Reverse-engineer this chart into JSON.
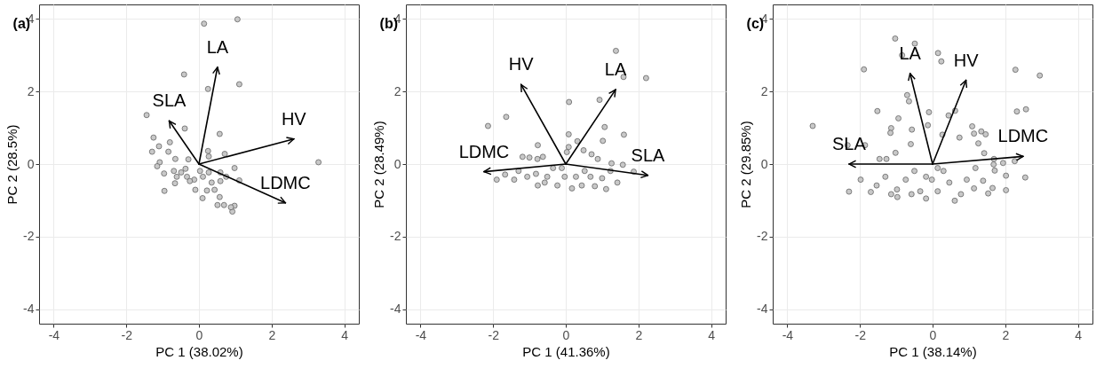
{
  "chart_data": [
    {
      "type": "scatter",
      "title": "(a)",
      "xlabel": "PC 1 (38.02%)",
      "ylabel": "PC 2 (28.5%)",
      "xlim": [
        -4.4,
        4.4
      ],
      "ylim": [
        -4.4,
        4.4
      ],
      "xticks": [
        -4,
        -2,
        0,
        2,
        4
      ],
      "yticks": [
        -4,
        -2,
        0,
        2,
        4
      ],
      "grid": true,
      "line_style": "solid",
      "series": [
        {
          "marker": "circle",
          "color": "#c8c8c8",
          "x": [
            0.14,
            1.06,
            -0.41,
            0.25,
            1.11,
            -1.44,
            -0.39,
            0.57,
            -1.25,
            -0.8,
            -1.1,
            0.25,
            0.71,
            -1.29,
            -0.84,
            -0.65,
            -1.08,
            3.29,
            -1.15,
            -0.96,
            0.98,
            1.11,
            -0.61,
            -0.37,
            -0.13,
            0.11,
            0.35,
            0.59,
            -0.66,
            -0.1,
            -0.95,
            0.22,
            0.43,
            0.1,
            0.57,
            0.51,
            0.69,
            0.98,
            0.92,
            0.88,
            0.27,
            -0.33,
            -0.49,
            0.03,
            -0.25,
            0.27,
            0.75,
            0.59,
            -0.69,
            -0.29
          ],
          "values": [
            3.87,
            3.99,
            2.47,
            2.07,
            2.2,
            1.35,
            0.98,
            0.83,
            0.73,
            0.6,
            0.49,
            0.36,
            0.28,
            0.34,
            0.34,
            0.14,
            0.05,
            0.05,
            -0.06,
            -0.26,
            -0.11,
            -0.45,
            -0.35,
            -0.13,
            -0.43,
            -0.35,
            -0.51,
            -0.47,
            -0.53,
            -0.71,
            -0.74,
            -0.73,
            -0.71,
            -0.94,
            -0.91,
            -1.13,
            -1.13,
            -1.15,
            -1.31,
            -1.19,
            0.21,
            -0.35,
            -0.23,
            -0.19,
            -0.47,
            -0.23,
            -0.35,
            -0.23,
            -0.19,
            0.13
          ]
        },
        {
          "type": "line",
          "name": "LA",
          "color": "#000000",
          "x": [
            0,
            0.51
          ],
          "values": [
            0,
            2.67
          ]
        },
        {
          "type": "line",
          "name": "SLA",
          "color": "#000000",
          "x": [
            0,
            -0.82
          ],
          "values": [
            0,
            1.19
          ]
        },
        {
          "type": "line",
          "name": "HV",
          "color": "#000000",
          "x": [
            0,
            2.61
          ],
          "values": [
            0,
            0.69
          ]
        },
        {
          "type": "line",
          "name": "LDMC",
          "color": "#000000",
          "x": [
            0,
            2.38
          ],
          "values": [
            0,
            -1.07
          ]
        }
      ]
    },
    {
      "type": "scatter",
      "title": "(b)",
      "xlabel": "PC 1 (41.36%)",
      "ylabel": "PC 2 (28.49%)",
      "xlim": [
        -4.4,
        4.4
      ],
      "ylim": [
        -4.4,
        4.4
      ],
      "xticks": [
        -4,
        -2,
        0,
        2,
        4
      ],
      "yticks": [
        -4,
        -2,
        0,
        2,
        4
      ],
      "grid": true,
      "line_style": "solid",
      "series": [
        {
          "marker": "circle",
          "color": "#c8c8c8",
          "x": [
            1.38,
            1.59,
            2.21,
            0.09,
            0.93,
            -1.64,
            -2.14,
            1.07,
            0.08,
            1.6,
            1.02,
            -0.77,
            0.32,
            0.08,
            0.49,
            0.03,
            0.71,
            -1.19,
            -1.0,
            -0.78,
            -0.63,
            0.88,
            1.26,
            1.57,
            1.87,
            -1.67,
            -1.9,
            -1.42,
            -1.3,
            -1.06,
            -0.82,
            -0.77,
            -0.51,
            -0.23,
            -0.03,
            0.17,
            0.28,
            0.44,
            0.68,
            0.8,
            1.11,
            1.0,
            1.42,
            1.23,
            -0.35,
            -0.58,
            0.52,
            -0.11
          ],
          "values": [
            3.12,
            2.4,
            2.37,
            1.71,
            1.77,
            1.3,
            1.05,
            1.02,
            0.82,
            0.81,
            0.64,
            0.52,
            0.63,
            0.47,
            0.38,
            0.33,
            0.27,
            0.2,
            0.18,
            0.14,
            0.2,
            0.14,
            0.02,
            -0.02,
            -0.21,
            -0.29,
            -0.43,
            -0.43,
            -0.19,
            -0.35,
            -0.27,
            -0.59,
            -0.35,
            -0.59,
            -0.35,
            -0.67,
            -0.35,
            -0.59,
            -0.35,
            -0.61,
            -0.69,
            -0.39,
            -0.51,
            -0.19,
            -0.11,
            -0.51,
            -0.19,
            -0.11
          ]
        },
        {
          "type": "line",
          "name": "HV",
          "color": "#000000",
          "x": [
            0,
            -1.23
          ],
          "values": [
            0,
            2.19
          ]
        },
        {
          "type": "line",
          "name": "LA",
          "color": "#000000",
          "x": [
            0,
            1.37
          ],
          "values": [
            0,
            2.05
          ]
        },
        {
          "type": "line",
          "name": "LDMC",
          "color": "#000000",
          "x": [
            0,
            -2.25
          ],
          "values": [
            0,
            -0.21
          ]
        },
        {
          "type": "line",
          "name": "SLA",
          "color": "#000000",
          "x": [
            0,
            2.26
          ],
          "values": [
            0,
            -0.31
          ]
        }
      ]
    },
    {
      "type": "scatter",
      "title": "(c)",
      "xlabel": "PC 1 (38.14%)",
      "ylabel": "PC 2 (29.85%)",
      "xlim": [
        -4.4,
        4.4
      ],
      "ylim": [
        -4.4,
        4.4
      ],
      "xticks": [
        -4,
        -2,
        0,
        2,
        4
      ],
      "yticks": [
        -4,
        -2,
        0,
        2,
        4
      ],
      "grid": true,
      "line_style": "solid",
      "series": [
        {
          "marker": "circle",
          "color": "#c8c8c8",
          "x": [
            -1.03,
            -0.49,
            -0.84,
            0.15,
            0.24,
            -1.89,
            2.28,
            2.95,
            -0.7,
            -0.65,
            -1.52,
            -0.1,
            0.62,
            0.44,
            2.32,
            2.57,
            -0.94,
            -3.3,
            -0.13,
            -1.14,
            1.09,
            -1.16,
            -0.57,
            1.14,
            1.34,
            1.46,
            -2.34,
            -1.86,
            -0.6,
            0.27,
            0.74,
            1.26,
            -1.46,
            -1.27,
            -1.02,
            1.42,
            1.69,
            1.94,
            2.26,
            1.68,
            1.71,
            2.02,
            2.55,
            2.02,
            -1.98,
            -2.3,
            -1.7,
            -1.54,
            -1.3,
            -0.98,
            -0.97,
            -0.74,
            -0.5,
            -0.34,
            -0.18,
            -0.02,
            0.14,
            0.3,
            0.46,
            0.61,
            0.78,
            0.94,
            1.18,
            1.14,
            1.39,
            1.53,
            1.65,
            -0.18,
            0.14,
            -0.58,
            -1.14
          ],
          "values": [
            3.46,
            3.32,
            3.0,
            3.06,
            2.83,
            2.61,
            2.6,
            2.44,
            1.9,
            1.73,
            1.46,
            1.43,
            1.47,
            1.34,
            1.45,
            1.51,
            1.26,
            1.05,
            1.07,
            0.99,
            1.04,
            0.86,
            0.95,
            0.84,
            0.9,
            0.82,
            0.52,
            0.52,
            0.55,
            0.81,
            0.73,
            0.57,
            0.14,
            0.14,
            0.31,
            0.3,
            0.14,
            0.03,
            0.08,
            -0.01,
            -0.18,
            -0.32,
            -0.37,
            -0.72,
            -0.43,
            -0.76,
            -0.77,
            -0.59,
            -0.35,
            -0.7,
            -0.91,
            -0.43,
            -0.19,
            -0.75,
            -0.95,
            -0.43,
            -0.75,
            -0.19,
            -0.51,
            -1.01,
            -0.83,
            -0.43,
            -0.11,
            -0.67,
            -0.46,
            -0.81,
            -0.66,
            -0.35,
            -0.11,
            -0.83,
            -0.83
          ]
        },
        {
          "type": "line",
          "name": "SLA",
          "color": "#000000",
          "x": [
            0,
            -2.3
          ],
          "values": [
            0,
            0.0
          ]
        },
        {
          "type": "line",
          "name": "LA",
          "color": "#000000",
          "x": [
            0,
            -0.62
          ],
          "values": [
            0,
            2.5
          ]
        },
        {
          "type": "line",
          "name": "HV",
          "color": "#000000",
          "x": [
            0,
            0.92
          ],
          "values": [
            0,
            2.31
          ]
        },
        {
          "type": "line",
          "name": "LDMC",
          "color": "#000000",
          "x": [
            0,
            2.49
          ],
          "values": [
            0,
            0.21
          ]
        }
      ]
    }
  ]
}
